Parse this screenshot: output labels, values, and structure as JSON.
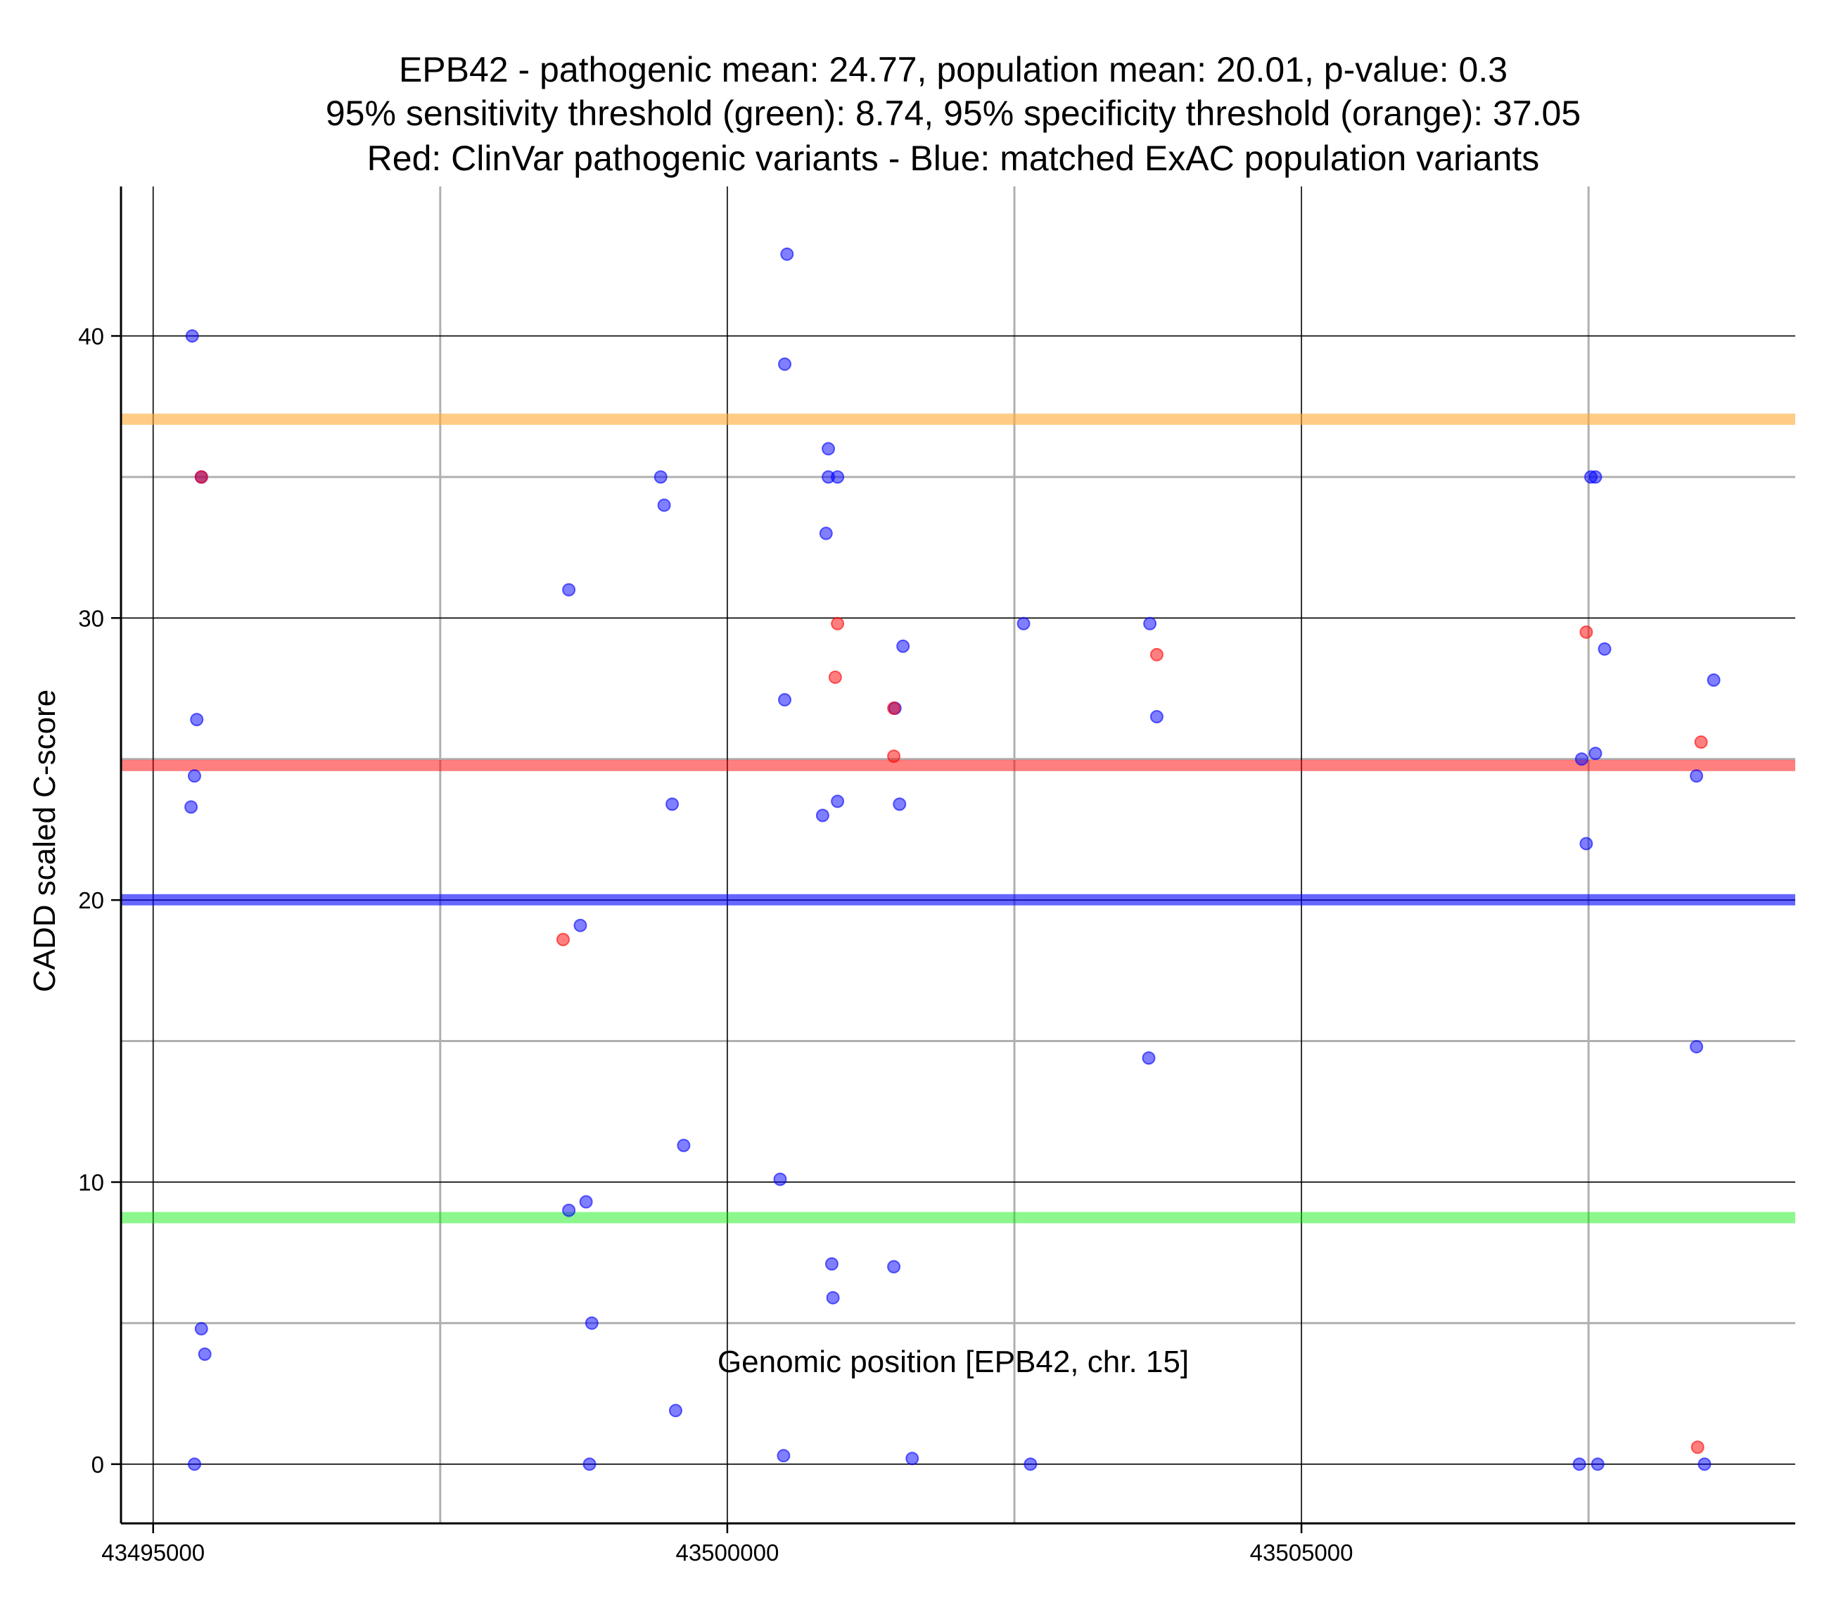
{
  "chart_data": {
    "type": "scatter",
    "title_lines": [
      "EPB42 - pathogenic mean: 24.77, population mean: 20.01, p-value: 0.3",
      "95% sensitivity threshold (green): 8.74, 95% specificity threshold (orange): 37.05",
      "Red: ClinVar pathogenic variants - Blue: matched ExAC population variants"
    ],
    "xlabel": "Genomic position [EPB42, chr. 15]",
    "ylabel": "CADD scaled C-score",
    "xlim": [
      43494720,
      43509300
    ],
    "ylim": [
      -2.1,
      45.3
    ],
    "x_ticks": [
      43495000,
      43500000,
      43505000
    ],
    "x_tick_labels": [
      "43495000",
      "43500000",
      "43505000"
    ],
    "x_minor_grid": [
      43497500,
      43502500,
      43507500
    ],
    "y_ticks": [
      0,
      10,
      20,
      30,
      40
    ],
    "y_tick_labels": [
      "0",
      "10",
      "20",
      "30",
      "40"
    ],
    "y_minor_grid": [
      5,
      15,
      25,
      35
    ],
    "grid": true,
    "colors": {
      "pathogenic": "#ff0000",
      "population": "#0000ff",
      "sensitivity": "#66ee44",
      "specificity": "#ffaa33",
      "pathogenic_mean": "#ff3333",
      "population_mean": "#3333ff"
    },
    "horizontal_lines": [
      {
        "name": "specificity",
        "y": 37.05,
        "color": "#ffaa33",
        "opacity": 0.6
      },
      {
        "name": "pathogenic-mean",
        "y": 24.77,
        "color": "#ff0000",
        "opacity": 0.5
      },
      {
        "name": "population-mean",
        "y": 20.01,
        "color": "#0000ff",
        "opacity": 0.6
      },
      {
        "name": "sensitivity",
        "y": 8.74,
        "color": "#00ee00",
        "opacity": 0.45
      }
    ],
    "series": [
      {
        "name": "ClinVar pathogenic variants",
        "color": "#ff0000",
        "points": [
          [
            43495420,
            35.0
          ],
          [
            43498570,
            18.6
          ],
          [
            43500960,
            29.8
          ],
          [
            43500940,
            27.9
          ],
          [
            43501450,
            26.8
          ],
          [
            43501450,
            25.1
          ],
          [
            43503740,
            28.7
          ],
          [
            43507480,
            29.5
          ],
          [
            43508480,
            25.6
          ],
          [
            43508450,
            0.6
          ]
        ]
      },
      {
        "name": "matched ExAC population variants",
        "color": "#0000ff",
        "points": [
          [
            43495340,
            40.0
          ],
          [
            43495420,
            35.0
          ],
          [
            43495380,
            26.4
          ],
          [
            43495360,
            24.4
          ],
          [
            43495330,
            23.3
          ],
          [
            43495420,
            4.8
          ],
          [
            43495450,
            3.9
          ],
          [
            43495360,
            0.0
          ],
          [
            43498620,
            31.0
          ],
          [
            43498720,
            19.1
          ],
          [
            43498620,
            9.0
          ],
          [
            43498770,
            9.3
          ],
          [
            43498820,
            5.0
          ],
          [
            43498800,
            0.0
          ],
          [
            43499420,
            35.0
          ],
          [
            43499450,
            34.0
          ],
          [
            43499520,
            23.4
          ],
          [
            43499620,
            11.3
          ],
          [
            43499550,
            1.9
          ],
          [
            43500520,
            42.9
          ],
          [
            43500500,
            39.0
          ],
          [
            43500500,
            27.1
          ],
          [
            43500460,
            10.1
          ],
          [
            43500490,
            0.3
          ],
          [
            43500880,
            36.0
          ],
          [
            43500880,
            35.0
          ],
          [
            43500960,
            35.0
          ],
          [
            43500860,
            33.0
          ],
          [
            43500960,
            23.5
          ],
          [
            43500830,
            23.0
          ],
          [
            43500910,
            7.1
          ],
          [
            43500920,
            5.9
          ],
          [
            43501460,
            26.8
          ],
          [
            43501530,
            29.0
          ],
          [
            43501500,
            23.4
          ],
          [
            43501450,
            7.0
          ],
          [
            43501610,
            0.2
          ],
          [
            43502580,
            29.8
          ],
          [
            43502640,
            0.0
          ],
          [
            43503680,
            29.8
          ],
          [
            43503740,
            26.5
          ],
          [
            43503670,
            14.4
          ],
          [
            43507520,
            35.0
          ],
          [
            43507560,
            35.0
          ],
          [
            43507640,
            28.9
          ],
          [
            43507560,
            25.2
          ],
          [
            43507440,
            25.0
          ],
          [
            43507480,
            22.0
          ],
          [
            43507420,
            0.0
          ],
          [
            43507580,
            0.0
          ],
          [
            43508590,
            27.8
          ],
          [
            43508440,
            24.4
          ],
          [
            43508440,
            14.8
          ],
          [
            43508510,
            0.0
          ]
        ]
      }
    ]
  }
}
